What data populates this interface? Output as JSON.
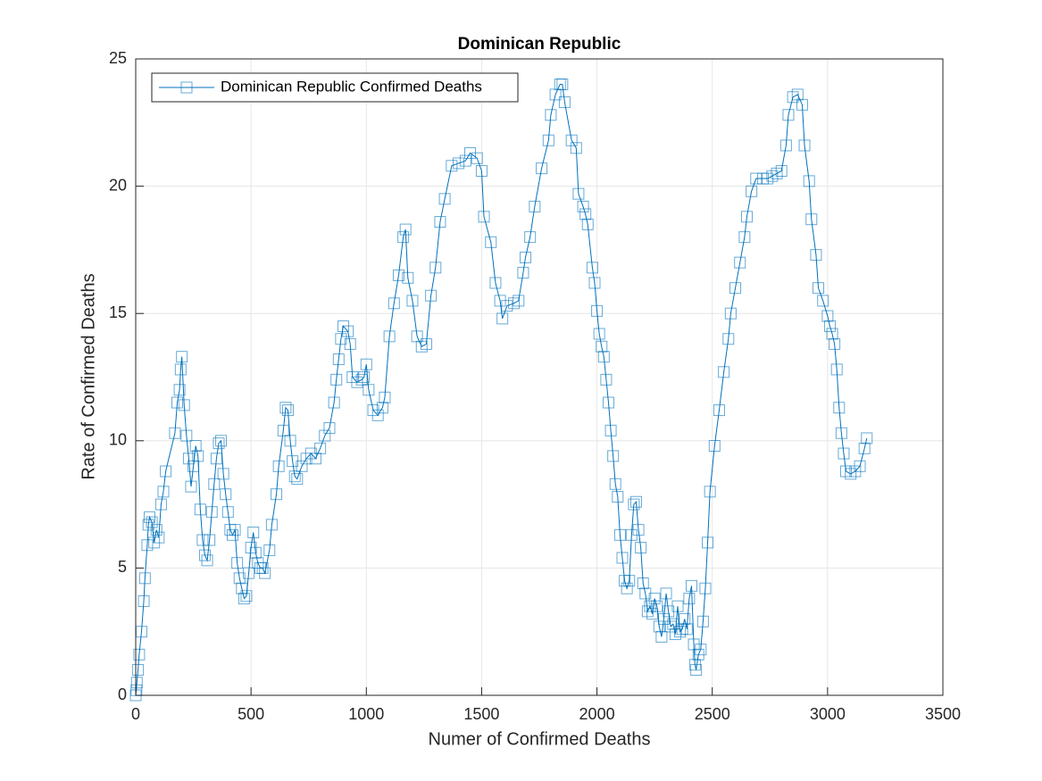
{
  "chart_data": {
    "type": "line",
    "title": "Dominican Republic",
    "x_label": "Numer of Confirmed Deaths",
    "y_label": "Rate of Confirmed Deaths",
    "xlim": [
      0,
      3500
    ],
    "xticks": [
      0,
      500,
      1000,
      1500,
      2000,
      2500,
      3000,
      3500
    ],
    "ylim": [
      0,
      25
    ],
    "yticks": [
      0,
      5,
      10,
      15,
      20,
      25
    ],
    "grid": true,
    "legend_position": "upper-left",
    "marker": "square",
    "x": [
      0,
      3,
      5,
      10,
      15,
      25,
      35,
      40,
      50,
      55,
      60,
      70,
      80,
      90,
      100,
      110,
      120,
      130,
      170,
      180,
      190,
      195,
      200,
      210,
      220,
      230,
      240,
      250,
      260,
      270,
      280,
      290,
      300,
      310,
      320,
      330,
      340,
      350,
      360,
      370,
      380,
      390,
      400,
      410,
      420,
      430,
      440,
      450,
      460,
      470,
      480,
      490,
      500,
      510,
      520,
      530,
      540,
      550,
      560,
      580,
      590,
      610,
      620,
      640,
      650,
      660,
      670,
      680,
      690,
      700,
      720,
      740,
      760,
      780,
      800,
      820,
      840,
      860,
      870,
      880,
      890,
      900,
      920,
      930,
      940,
      960,
      980,
      990,
      1000,
      1010,
      1030,
      1050,
      1070,
      1080,
      1100,
      1120,
      1140,
      1160,
      1170,
      1180,
      1200,
      1220,
      1240,
      1260,
      1280,
      1300,
      1320,
      1340,
      1370,
      1400,
      1430,
      1450,
      1480,
      1500,
      1510,
      1540,
      1560,
      1580,
      1590,
      1610,
      1640,
      1660,
      1680,
      1690,
      1710,
      1730,
      1760,
      1790,
      1800,
      1820,
      1840,
      1850,
      1860,
      1890,
      1910,
      1920,
      1940,
      1950,
      1960,
      1980,
      1990,
      2000,
      2010,
      2020,
      2030,
      2040,
      2050,
      2060,
      2070,
      2080,
      2090,
      2100,
      2110,
      2120,
      2130,
      2140,
      2150,
      2160,
      2170,
      2180,
      2190,
      2200,
      2210,
      2220,
      2230,
      2240,
      2250,
      2260,
      2270,
      2280,
      2290,
      2300,
      2310,
      2320,
      2330,
      2340,
      2350,
      2360,
      2370,
      2380,
      2390,
      2400,
      2410,
      2420,
      2425,
      2430,
      2440,
      2450,
      2460,
      2470,
      2480,
      2490,
      2510,
      2530,
      2550,
      2570,
      2580,
      2600,
      2620,
      2640,
      2650,
      2670,
      2690,
      2720,
      2740,
      2760,
      2780,
      2800,
      2820,
      2830,
      2850,
      2870,
      2890,
      2900,
      2920,
      2930,
      2950,
      2960,
      2980,
      3000,
      3010,
      3020,
      3030,
      3040,
      3050,
      3060,
      3070,
      3080,
      3100,
      3120,
      3140,
      3160,
      3170
    ],
    "series": [
      {
        "name": "Dominican Republic Confirmed Deaths",
        "color": "#0072bd",
        "values": [
          0,
          0.2,
          0.5,
          1.0,
          1.6,
          2.5,
          3.7,
          4.6,
          5.9,
          6.7,
          7.0,
          6.8,
          6.0,
          6.5,
          6.2,
          7.5,
          8.0,
          8.8,
          10.3,
          11.5,
          12.0,
          12.8,
          13.3,
          11.4,
          10.2,
          9.3,
          8.2,
          9.0,
          9.8,
          9.4,
          7.3,
          6.1,
          5.5,
          5.3,
          6.1,
          7.2,
          8.3,
          9.3,
          9.9,
          10.0,
          8.7,
          7.9,
          7.2,
          6.5,
          6.3,
          6.5,
          5.2,
          4.6,
          4.2,
          3.8,
          3.9,
          4.8,
          5.8,
          6.4,
          5.6,
          5.2,
          5.0,
          5.0,
          4.8,
          5.7,
          6.7,
          7.9,
          9.0,
          10.4,
          11.3,
          11.2,
          10.0,
          9.2,
          8.6,
          8.5,
          9.0,
          9.3,
          9.5,
          9.3,
          9.7,
          10.2,
          10.5,
          11.5,
          12.4,
          13.2,
          14.0,
          14.5,
          14.3,
          13.8,
          12.5,
          12.3,
          12.4,
          12.5,
          13.0,
          12.0,
          11.2,
          11.0,
          11.3,
          11.7,
          14.1,
          15.4,
          16.5,
          18.0,
          18.3,
          16.4,
          15.5,
          14.1,
          13.7,
          13.8,
          15.7,
          16.8,
          18.6,
          19.5,
          20.8,
          20.9,
          21.0,
          21.3,
          21.1,
          20.6,
          18.8,
          17.8,
          16.2,
          15.5,
          14.8,
          15.3,
          15.4,
          15.5,
          16.6,
          17.2,
          18.0,
          19.2,
          20.7,
          21.8,
          22.8,
          23.6,
          24.0,
          24.0,
          23.3,
          21.8,
          21.5,
          19.7,
          19.2,
          18.9,
          18.5,
          16.8,
          16.2,
          15.1,
          14.2,
          13.7,
          13.3,
          12.4,
          11.5,
          10.4,
          9.4,
          8.3,
          7.8,
          6.3,
          5.4,
          4.5,
          4.2,
          4.5,
          6.3,
          7.5,
          7.6,
          6.5,
          5.8,
          4.4,
          4.0,
          3.3,
          3.5,
          3.2,
          3.8,
          3.5,
          2.7,
          2.3,
          3.0,
          4.0,
          3.3,
          2.7,
          2.8,
          2.4,
          3.5,
          2.5,
          2.6,
          3.0,
          2.6,
          3.8,
          4.3,
          2.0,
          1.2,
          1.0,
          1.6,
          1.8,
          2.9,
          4.2,
          6.0,
          8.0,
          9.8,
          11.2,
          12.7,
          14.0,
          15.0,
          16.0,
          17.0,
          18.0,
          18.8,
          19.8,
          20.3,
          20.3,
          20.3,
          20.4,
          20.5,
          20.6,
          21.6,
          22.8,
          23.5,
          23.6,
          23.2,
          21.6,
          20.2,
          18.7,
          17.3,
          16.0,
          15.5,
          14.9,
          14.5,
          14.2,
          13.8,
          12.8,
          11.3,
          10.3,
          9.5,
          8.8,
          8.7,
          8.8,
          9.0,
          9.7,
          10.1
        ]
      }
    ]
  }
}
